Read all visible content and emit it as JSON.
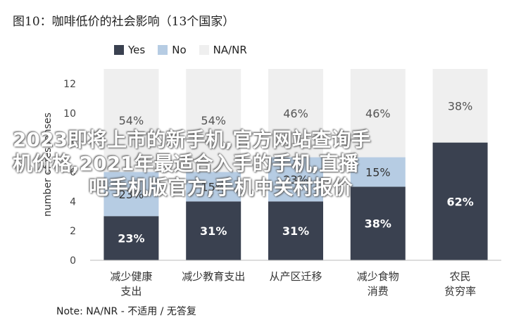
{
  "figure_title": "图10：咖啡低价的社会影响（13个国家）",
  "note": "Note: NA/NR - 不适用 / 无答复",
  "watermark": {
    "line1": "2023即将上市的新手机,官方网站查询手",
    "line2": "机价格,2021年最适合入手的手机,直播",
    "line3": "吧手机版官方,手机中关村报价"
  },
  "colors": {
    "yes": "#3a4150",
    "no": "#b6cce3",
    "na": "#efefef",
    "axis": "#666666"
  },
  "chart_data": {
    "type": "bar",
    "stacked": true,
    "title": "图10：咖啡低价的社会影响（13个国家）",
    "ylabel": "number of responses",
    "xlabel": "",
    "ylim": [
      0,
      13
    ],
    "yticks": [
      0,
      2,
      4,
      6,
      8,
      10,
      12
    ],
    "legend_position": "top",
    "categories": [
      [
        "减少健康",
        "支出"
      ],
      [
        "减少教育支出"
      ],
      [
        "从产区迁移"
      ],
      [
        "减少食物",
        "消费"
      ],
      [
        "农民",
        "贫穷率"
      ]
    ],
    "series": [
      {
        "name": "Yes",
        "values": [
          3,
          4,
          4,
          5,
          8
        ],
        "labels": [
          "23%",
          "31%",
          "31%",
          "38%",
          "62%"
        ]
      },
      {
        "name": "No",
        "values": [
          3,
          2,
          3,
          2,
          0
        ],
        "labels": [
          "23%",
          "15%",
          "23%",
          "15%",
          ""
        ]
      },
      {
        "name": "NA/NR",
        "values": [
          7,
          7,
          6,
          6,
          5
        ],
        "labels": [
          "54%",
          "54%",
          "46%",
          "46%",
          "38%"
        ]
      }
    ]
  }
}
